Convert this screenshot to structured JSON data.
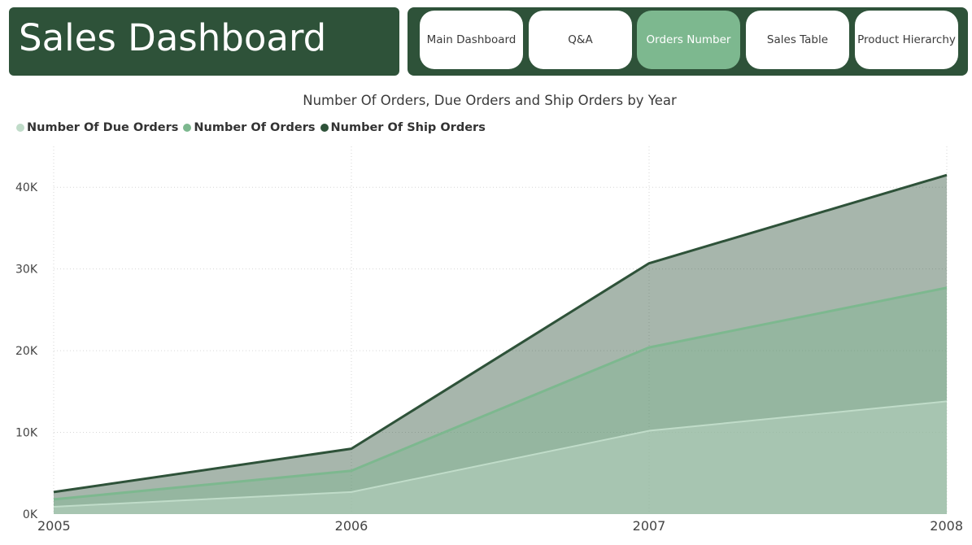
{
  "header": {
    "title": "Sales Dashboard"
  },
  "nav": {
    "buttons": [
      {
        "label": "Main Dashboard",
        "active": false
      },
      {
        "label": "Q&A",
        "active": false
      },
      {
        "label": "Orders Number",
        "active": true
      },
      {
        "label": "Sales Table",
        "active": false
      },
      {
        "label": "Product Hierarchy",
        "active": false
      }
    ]
  },
  "colors": {
    "header_bg": "#2e5239",
    "active_button": "#7db88f",
    "due_orders": "#c0dcc9",
    "orders": "#7db88f",
    "ship_orders": "#2e5239"
  },
  "chart_data": {
    "type": "area",
    "title": "Number Of Orders, Due Orders and Ship Orders by Year",
    "xlabel": "",
    "ylabel": "",
    "x": [
      "2005",
      "2006",
      "2007",
      "2008"
    ],
    "ylim": [
      0,
      45000
    ],
    "yticks": [
      0,
      10000,
      20000,
      30000,
      40000
    ],
    "ytick_labels": [
      "0K",
      "10K",
      "20K",
      "30K",
      "40K"
    ],
    "legend_position": "top-left",
    "grid": true,
    "series": [
      {
        "name": "Number Of Due Orders",
        "color": "#c0dcc9",
        "values": [
          900,
          2700,
          10200,
          13800
        ]
      },
      {
        "name": "Number Of Orders",
        "color": "#7db88f",
        "values": [
          1800,
          5300,
          20400,
          27700
        ]
      },
      {
        "name": "Number Of Ship Orders",
        "color": "#2e5239",
        "values": [
          2700,
          8000,
          30700,
          41500
        ]
      }
    ]
  }
}
